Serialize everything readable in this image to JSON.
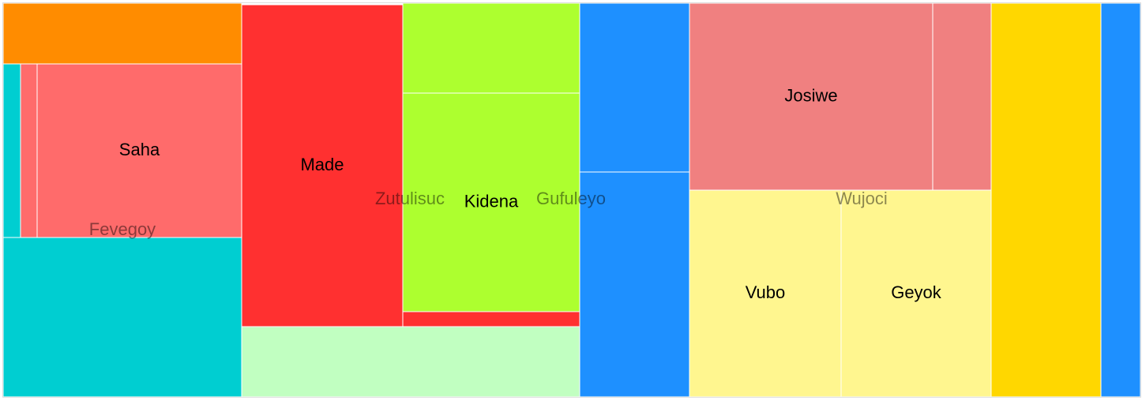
{
  "chart_data": {
    "type": "treemap",
    "title": "",
    "groups": [
      {
        "name": "Fevegoy",
        "color": "#FF6B6B",
        "children": [
          {
            "name": "",
            "value": 23.3,
            "color": "#FF8C00"
          },
          {
            "name": "",
            "value": 6.4,
            "color": "#00CED1"
          },
          {
            "name": "",
            "value": 4.4,
            "color": "#FF6B6B"
          },
          {
            "name": "Saha",
            "value": 56.5,
            "color": "#FF6B6B"
          },
          {
            "name": "",
            "value": 61.3,
            "color": "#00CED1"
          }
        ]
      },
      {
        "name": "Zutulisuc",
        "color": "#FF3030",
        "children": [
          {
            "name": "Made",
            "value": 82.3,
            "color": "#FF3030"
          },
          {
            "name": "",
            "value": 39.4,
            "color": "#C1FFC1"
          }
        ]
      },
      {
        "name": "Gufuleyo",
        "color": "#ADFF2F",
        "children": [
          {
            "name": "",
            "value": 25.2,
            "color": "#ADFF2F"
          },
          {
            "name": "Kidena",
            "value": 61.4,
            "color": "#ADFF2F"
          },
          {
            "name": "",
            "value": 4.4,
            "color": "#FF3030"
          },
          {
            "name": "",
            "value": 29.5,
            "color": "#1E90FF"
          },
          {
            "name": "",
            "value": 39.4,
            "color": "#1E90FF"
          }
        ]
      },
      {
        "name": "Wujoci",
        "color": "#F08080",
        "children": [
          {
            "name": "Josiwe",
            "value": 72.5,
            "color": "#F08080"
          },
          {
            "name": "",
            "value": 17.1,
            "color": "#F08080"
          },
          {
            "name": "Vubo",
            "value": 47.9,
            "color": "#FFF68F"
          },
          {
            "name": "Geyok",
            "value": 48.8,
            "color": "#FFF68F"
          }
        ]
      },
      {
        "name": "",
        "color": "#FFD700",
        "children": [
          {
            "name": "",
            "value": 68.8,
            "color": "#FFD700"
          },
          {
            "name": "",
            "value": 24.1,
            "color": "#1E90FF"
          }
        ]
      }
    ]
  }
}
